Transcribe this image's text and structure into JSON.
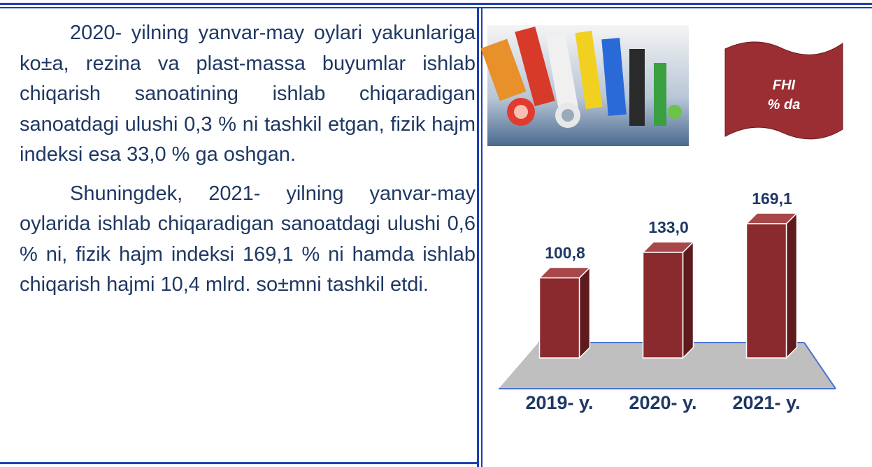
{
  "text": {
    "paragraphs": [
      "2020- yilning yanvar-may oylari yakunlariga ko±a, rezina va plast-massa buyumlar ishlab chiqarish sanoatining ishlab chiqaradigan sanoatdagi ulushi 0,3 % ni tashkil etgan, fizik hajm indeksi esa 33,0 % ga oshgan.",
      "Shuningdek, 2021- yilning yanvar-may oylarida ishlab chiqaradigan sanoatdagi ulushi 0,6 % ni, fizik hajm indeksi 169,1 % ni hamda ishlab chiqarish hajmi 10,4 mlrd. so±mni tashkil etdi."
    ]
  },
  "banner": {
    "line1": "FHI",
    "line2": "% da"
  },
  "chart_data": {
    "type": "bar",
    "categories": [
      "2019- y.",
      "2020- y.",
      "2021- y."
    ],
    "values": [
      100.8,
      133.0,
      169.1
    ],
    "value_labels": [
      "100,8",
      "133,0",
      "169,1"
    ],
    "color": "#8b2a2e"
  }
}
